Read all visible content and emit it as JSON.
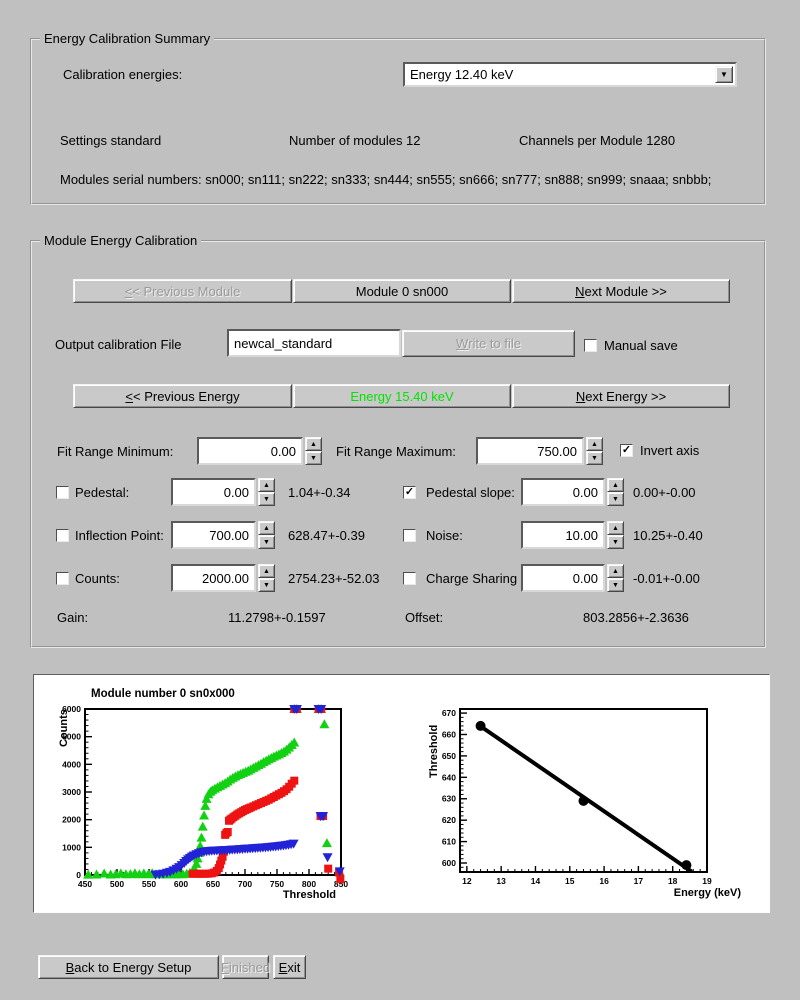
{
  "icons": {
    "up_arrow": "▲",
    "down_arrow": "▼",
    "dropdown_arrow": "▼",
    "check": "✓"
  },
  "energy_summary": {
    "title": "Energy Calibration Summary",
    "calibration_energies_label": "Calibration energies:",
    "energy_select_value": "Energy 12.40 keV",
    "settings": "Settings standard",
    "num_modules": "Number of modules 12",
    "channels_per_module": "Channels per Module 1280",
    "serials": "Modules serial numbers: sn000; sn111; sn222; sn333; sn444; sn555; sn666; sn777; sn888; sn999; snaaa; snbbb;"
  },
  "module_calibration": {
    "title": "Module Energy Calibration",
    "prev_module": "<< Previous Module",
    "module_label": "Module 0 sn000",
    "next_module": "Next Module >>",
    "output_file_label": "Output calibration File",
    "output_file_value": "newcal_standard",
    "write_button": "Write to file",
    "manual_save_label": "Manual save",
    "manual_save_checked": false,
    "prev_energy": "<< Previous Energy",
    "energy_label": "Energy 15.40 keV",
    "energy_color": "#00e400",
    "next_energy": "Next Energy >>",
    "fit_min_label": "Fit Range Minimum:",
    "fit_min_value": "0.00",
    "fit_max_label": "Fit Range Maximum:",
    "fit_max_value": "750.00",
    "invert_axis_label": "Invert axis",
    "invert_axis_checked": true,
    "params": {
      "pedestal": {
        "label": "Pedestal:",
        "value": "0.00",
        "stat": "1.04+-0.34",
        "checked": false
      },
      "pedestal_slope": {
        "label": "Pedestal slope:",
        "value": "0.00",
        "stat": "0.00+-0.00",
        "checked": true
      },
      "inflection": {
        "label": "Inflection Point:",
        "value": "700.00",
        "stat": "628.47+-0.39",
        "checked": false
      },
      "noise": {
        "label": "Noise:",
        "value": "10.00",
        "stat": "10.25+-0.40",
        "checked": false
      },
      "counts": {
        "label": "Counts:",
        "value": "2000.00",
        "stat": "2754.23+-52.03",
        "checked": false
      },
      "charge_sharing": {
        "label": "Charge Sharing",
        "value": "0.00",
        "stat": "-0.01+-0.00",
        "checked": false
      }
    },
    "gain_label": "Gain:",
    "gain_value": "11.2798+-0.1597",
    "offset_label": "Offset:",
    "offset_value": "803.2856+-2.3636"
  },
  "footer": {
    "back": "Back to Energy Setup",
    "finished": "Finished",
    "exit": "Exit"
  },
  "chart_data": [
    {
      "type": "scatter",
      "name": "threshold-scan-plot",
      "title": "Module number 0 sn0x000",
      "xlabel": "Threshold",
      "ylabel": "Counts",
      "xlim": [
        450,
        850
      ],
      "ylim": [
        0,
        6000
      ],
      "xticks": [
        450,
        500,
        550,
        600,
        650,
        700,
        750,
        800,
        850
      ],
      "yticks": [
        0,
        1000,
        2000,
        3000,
        4000,
        5000,
        6000
      ],
      "x_minor": 10,
      "y_minor": 200,
      "grid": false,
      "legend": "none",
      "series": [
        {
          "name": "green-triangle-scan",
          "marker": "triangle-up",
          "color": "#12d012",
          "points": [
            [
              455,
              15
            ],
            [
              468,
              18
            ],
            [
              480,
              55
            ],
            [
              490,
              20
            ],
            [
              498,
              28
            ],
            [
              506,
              60
            ],
            [
              514,
              25
            ],
            [
              521,
              30
            ],
            [
              528,
              62
            ],
            [
              535,
              25
            ],
            [
              542,
              60
            ],
            [
              549,
              25
            ],
            [
              555,
              68
            ],
            [
              561,
              28
            ],
            [
              567,
              25
            ],
            [
              573,
              28
            ],
            [
              579,
              24
            ],
            [
              585,
              28
            ],
            [
              591,
              22
            ],
            [
              597,
              30
            ],
            [
              603,
              28
            ],
            [
              609,
              45
            ],
            [
              614,
              75
            ],
            [
              618,
              130
            ],
            [
              621,
              220
            ],
            [
              624,
              400
            ],
            [
              626,
              600
            ],
            [
              628,
              800
            ],
            [
              630,
              1050
            ],
            [
              632,
              1350
            ],
            [
              634,
              1750
            ],
            [
              636,
              2150
            ],
            [
              638,
              2500
            ],
            [
              640,
              2750
            ],
            [
              643,
              2920
            ],
            [
              646,
              3010
            ],
            [
              649,
              3070
            ],
            [
              653,
              3120
            ],
            [
              657,
              3170
            ],
            [
              661,
              3220
            ],
            [
              665,
              3270
            ],
            [
              669,
              3320
            ],
            [
              673,
              3380
            ],
            [
              677,
              3450
            ],
            [
              681,
              3510
            ],
            [
              685,
              3560
            ],
            [
              689,
              3610
            ],
            [
              693,
              3650
            ],
            [
              697,
              3690
            ],
            [
              701,
              3730
            ],
            [
              705,
              3770
            ],
            [
              709,
              3820
            ],
            [
              713,
              3870
            ],
            [
              717,
              3920
            ],
            [
              721,
              3970
            ],
            [
              725,
              4020
            ],
            [
              729,
              4080
            ],
            [
              733,
              4130
            ],
            [
              737,
              4180
            ],
            [
              741,
              4230
            ],
            [
              745,
              4280
            ],
            [
              749,
              4320
            ],
            [
              753,
              4360
            ],
            [
              757,
              4410
            ],
            [
              761,
              4460
            ],
            [
              765,
              4530
            ],
            [
              769,
              4610
            ],
            [
              773,
              4700
            ],
            [
              777,
              4790
            ],
            [
              777,
              6000
            ],
            [
              781,
              6000
            ],
            [
              815,
              6000
            ],
            [
              819,
              6000
            ],
            [
              824,
              5450
            ],
            [
              828,
              1150
            ],
            [
              848,
              120
            ]
          ]
        },
        {
          "name": "red-square-scan",
          "marker": "square",
          "color": "#ee1313",
          "points": [
            [
              618,
              45
            ],
            [
              623,
              45
            ],
            [
              628,
              45
            ],
            [
              633,
              45
            ],
            [
              638,
              45
            ],
            [
              643,
              48
            ],
            [
              648,
              60
            ],
            [
              652,
              90
            ],
            [
              656,
              150
            ],
            [
              659,
              250
            ],
            [
              661,
              380
            ],
            [
              663,
              520
            ],
            [
              665,
              660
            ],
            [
              667,
              840
            ],
            [
              669,
              1450
            ],
            [
              671,
              1520
            ],
            [
              673,
              1555
            ],
            [
              675,
              1960
            ],
            [
              677,
              2000
            ],
            [
              679,
              2040
            ],
            [
              682,
              2090
            ],
            [
              685,
              2140
            ],
            [
              688,
              2190
            ],
            [
              691,
              2230
            ],
            [
              694,
              2270
            ],
            [
              697,
              2310
            ],
            [
              700,
              2350
            ],
            [
              703,
              2380
            ],
            [
              706,
              2410
            ],
            [
              709,
              2440
            ],
            [
              713,
              2480
            ],
            [
              717,
              2520
            ],
            [
              721,
              2560
            ],
            [
              725,
              2600
            ],
            [
              729,
              2640
            ],
            [
              733,
              2680
            ],
            [
              737,
              2720
            ],
            [
              741,
              2770
            ],
            [
              745,
              2820
            ],
            [
              749,
              2870
            ],
            [
              753,
              2920
            ],
            [
              757,
              2970
            ],
            [
              761,
              3030
            ],
            [
              765,
              3100
            ],
            [
              769,
              3190
            ],
            [
              773,
              3300
            ],
            [
              777,
              3410
            ],
            [
              777,
              6000
            ],
            [
              781,
              6000
            ],
            [
              815,
              6000
            ],
            [
              819,
              6000
            ],
            [
              818,
              2130
            ],
            [
              822,
              2130
            ],
            [
              830,
              230
            ],
            [
              847,
              90
            ],
            [
              849,
              -150
            ]
          ]
        },
        {
          "name": "blue-triangle-scan",
          "marker": "triangle-down",
          "color": "#2222d6",
          "points": [
            [
              560,
              15
            ],
            [
              566,
              25
            ],
            [
              572,
              45
            ],
            [
              578,
              80
            ],
            [
              583,
              115
            ],
            [
              588,
              165
            ],
            [
              593,
              225
            ],
            [
              597,
              285
            ],
            [
              601,
              355
            ],
            [
              605,
              435
            ],
            [
              608,
              505
            ],
            [
              611,
              565
            ],
            [
              614,
              615
            ],
            [
              617,
              665
            ],
            [
              620,
              705
            ],
            [
              624,
              748
            ],
            [
              628,
              788
            ],
            [
              632,
              818
            ],
            [
              636,
              842
            ],
            [
              640,
              858
            ],
            [
              644,
              868
            ],
            [
              648,
              875
            ],
            [
              652,
              880
            ],
            [
              656,
              885
            ],
            [
              660,
              890
            ],
            [
              664,
              895
            ],
            [
              668,
              900
            ],
            [
              672,
              905
            ],
            [
              676,
              910
            ],
            [
              680,
              915
            ],
            [
              684,
              921
            ],
            [
              688,
              927
            ],
            [
              692,
              933
            ],
            [
              696,
              940
            ],
            [
              700,
              947
            ],
            [
              704,
              954
            ],
            [
              708,
              960
            ],
            [
              712,
              966
            ],
            [
              716,
              972
            ],
            [
              720,
              979
            ],
            [
              724,
              986
            ],
            [
              728,
              993
            ],
            [
              732,
              1000
            ],
            [
              736,
              1008
            ],
            [
              740,
              1016
            ],
            [
              744,
              1025
            ],
            [
              748,
              1034
            ],
            [
              752,
              1044
            ],
            [
              756,
              1055
            ],
            [
              760,
              1067
            ],
            [
              764,
              1080
            ],
            [
              768,
              1094
            ],
            [
              772,
              1112
            ],
            [
              776,
              1136
            ],
            [
              777,
              6000
            ],
            [
              781,
              6000
            ],
            [
              815,
              6000
            ],
            [
              819,
              6000
            ],
            [
              818,
              2130
            ],
            [
              822,
              2130
            ],
            [
              829,
              640
            ],
            [
              848,
              130
            ]
          ]
        }
      ]
    },
    {
      "type": "line",
      "name": "calibration-fit-plot",
      "title": "",
      "xlabel": "Energy (keV)",
      "ylabel": "Threshold",
      "xlim": [
        11.8,
        19
      ],
      "ylim": [
        595.8,
        671.9
      ],
      "xticks": [
        12,
        13,
        14,
        15,
        16,
        17,
        18,
        19
      ],
      "yticks": [
        600,
        610,
        620,
        630,
        640,
        650,
        660,
        670
      ],
      "x_minor": 0.2,
      "y_minor": 2,
      "grid": false,
      "legend": "none",
      "fit_line": {
        "x1": 12.33,
        "y1": 664.6,
        "x2": 18.52,
        "y2": 596.4
      },
      "series": [
        {
          "name": "inflection-point-vs-energy",
          "marker": "circle",
          "color": "#000000",
          "points": [
            [
              12.4,
              664
            ],
            [
              15.4,
              629
            ],
            [
              18.4,
              599
            ]
          ]
        }
      ]
    }
  ]
}
